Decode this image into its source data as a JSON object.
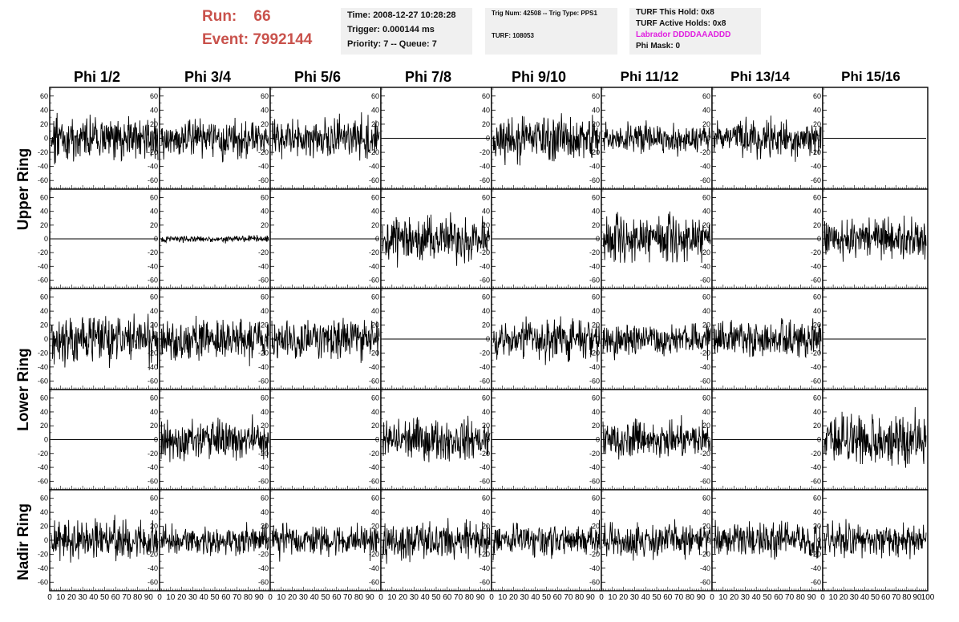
{
  "run_info": {
    "run_label": "Run:",
    "run_value": "66",
    "event_label": "Event:",
    "event_value": "7992144"
  },
  "time_box": {
    "time": "Time: 2008-12-27 10:28:28",
    "trigger": "Trigger: 0.000144 ms",
    "priority": "Priority: 7 -- Queue: 7"
  },
  "trig_box": {
    "trig": "Trig Num: 42508 -- Trig Type: PPS1",
    "turf": "TURF: 108053"
  },
  "turf_box": {
    "hold": "TURF This Hold: 0x8",
    "active": "TURF Active Holds: 0x8",
    "labrador": "Labrador DDDDAAADDD",
    "phi_mask": "Phi Mask: 0"
  },
  "colors": {
    "run_text": "#c9524c",
    "labrador_text": "#e020e0",
    "info_bg": "#f0f0f0",
    "trace": "#000000"
  },
  "chart_data": {
    "type": "line",
    "columns": [
      "Phi 1/2",
      "Phi 3/4",
      "Phi 5/6",
      "Phi 7/8",
      "Phi 9/10",
      "Phi 11/12",
      "Phi 13/14",
      "Phi 15/16"
    ],
    "rows": [
      "Upper Ring",
      "Lower Ring",
      "Nadir Ring"
    ],
    "row_panels": [
      {
        "ring": "Upper Ring",
        "sub": 0
      },
      {
        "ring": "Upper Ring",
        "sub": 1
      },
      {
        "ring": "Lower Ring",
        "sub": 0
      },
      {
        "ring": "Lower Ring",
        "sub": 1
      },
      {
        "ring": "Nadir Ring",
        "sub": 0
      }
    ],
    "ylim": [
      -70,
      70
    ],
    "y_ticks": [
      -60,
      -40,
      -20,
      0,
      20,
      40,
      60
    ],
    "xlim": [
      0,
      100
    ],
    "x_ticks": [
      "0",
      "10",
      "20",
      "30",
      "40",
      "50",
      "60",
      "70",
      "80",
      "90",
      "100"
    ],
    "samples_per_trace": 260,
    "traces": [
      [
        {
          "a": 14,
          "s": 11
        },
        {
          "a": 12,
          "s": 12
        },
        {
          "a": 12,
          "s": 13
        },
        {
          "a": 0,
          "s": 14
        },
        {
          "a": 14,
          "s": 15
        },
        {
          "a": 9,
          "s": 16
        },
        {
          "a": 12,
          "s": 17
        },
        {
          "a": 0,
          "s": 18
        }
      ],
      [
        {
          "a": 0,
          "s": 21
        },
        {
          "a": 2,
          "s": 22
        },
        {
          "a": 0,
          "s": 23
        },
        {
          "a": 14,
          "s": 24
        },
        {
          "a": 0,
          "s": 25
        },
        {
          "a": 14,
          "s": 26
        },
        {
          "a": 0,
          "s": 27
        },
        {
          "a": 13,
          "s": 28
        }
      ],
      [
        {
          "a": 15,
          "s": 31
        },
        {
          "a": 13,
          "s": 32
        },
        {
          "a": 12,
          "s": 33
        },
        {
          "a": 0,
          "s": 34
        },
        {
          "a": 12,
          "s": 35
        },
        {
          "a": 10,
          "s": 36
        },
        {
          "a": 12,
          "s": 37
        },
        {
          "a": 0,
          "s": 38
        }
      ],
      [
        {
          "a": 0,
          "s": 41
        },
        {
          "a": 12,
          "s": 42
        },
        {
          "a": 0,
          "s": 43
        },
        {
          "a": 13,
          "s": 44
        },
        {
          "a": 0,
          "s": 45
        },
        {
          "a": 11,
          "s": 46
        },
        {
          "a": 0,
          "s": 47
        },
        {
          "a": 15,
          "s": 48
        }
      ],
      [
        {
          "a": 13,
          "s": 51
        },
        {
          "a": 9,
          "s": 52
        },
        {
          "a": 10,
          "s": 53
        },
        {
          "a": 11,
          "s": 54
        },
        {
          "a": 10,
          "s": 55
        },
        {
          "a": 11,
          "s": 56
        },
        {
          "a": 11,
          "s": 57
        },
        {
          "a": 10,
          "s": 58
        }
      ]
    ]
  }
}
